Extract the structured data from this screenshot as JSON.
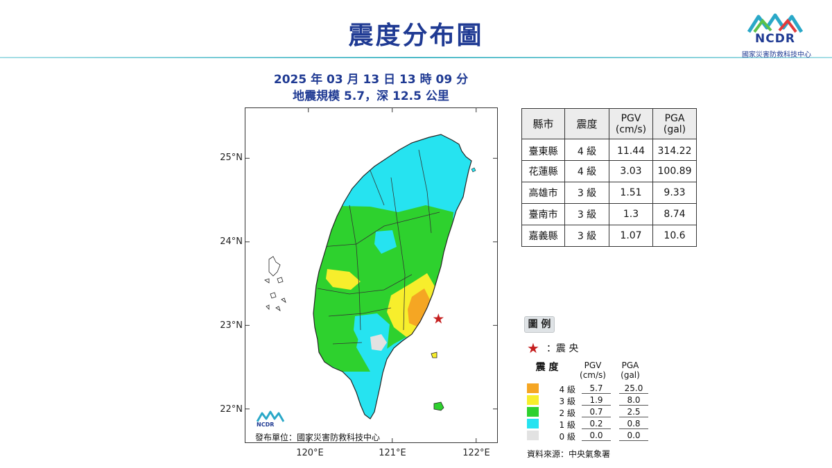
{
  "title": "震度分布圖",
  "org": {
    "logo_text": "NCDR",
    "name": "國家災害防救科技中心"
  },
  "event": {
    "datetime": "2025 年 03 月 13 日 13 時 09 分",
    "magnitude_depth": "地震規模 5.7，深 12.5 公里"
  },
  "map": {
    "lat_labels": [
      "25°N",
      "24°N",
      "23°N",
      "22°N"
    ],
    "lon_labels": [
      "120°E",
      "121°E",
      "122°E"
    ],
    "publisher": "發布單位：國家災害防救科技中心",
    "publisher_logo_text": "NCDR",
    "epicenter": {
      "lon": 121.55,
      "lat": 23.07
    }
  },
  "table": {
    "headers": {
      "county": "縣市",
      "level": "震度",
      "pgv": "PGV",
      "pgv_unit": "(cm/s)",
      "pga": "PGA",
      "pga_unit": "(gal)"
    },
    "rows": [
      {
        "county": "臺東縣",
        "level": "4 級",
        "pgv": "11.44",
        "pga": "314.22"
      },
      {
        "county": "花蓮縣",
        "level": "4 級",
        "pgv": "3.03",
        "pga": "100.89"
      },
      {
        "county": "高雄市",
        "level": "3 級",
        "pgv": "1.51",
        "pga": "9.33"
      },
      {
        "county": "臺南市",
        "level": "3 級",
        "pgv": "1.3",
        "pga": "8.74"
      },
      {
        "county": "嘉義縣",
        "level": "3 級",
        "pgv": "1.07",
        "pga": "10.6"
      }
    ]
  },
  "legend": {
    "title": "圖 例",
    "epicenter_label": "：震 央",
    "col_level": "震 度",
    "col_pgv": "PGV",
    "col_pgv_unit": "(cm/s)",
    "col_pga": "PGA",
    "col_pga_unit": "(gal)",
    "items": [
      {
        "level": "4 級",
        "pgv": "5.7",
        "pga": "25.0",
        "color": "#f5a623"
      },
      {
        "level": "3 級",
        "pgv": "1.9",
        "pga": "8.0",
        "color": "#f7ee2c"
      },
      {
        "level": "2 級",
        "pgv": "0.7",
        "pga": "2.5",
        "color": "#2ed12e"
      },
      {
        "level": "1 級",
        "pgv": "0.2",
        "pga": "0.8",
        "color": "#26e3f0"
      },
      {
        "level": "0 級",
        "pgv": "0.0",
        "pga": "0.0",
        "color": "#e2e2e2"
      }
    ]
  },
  "source": "資料來源：中央氣象署",
  "colors": {
    "title": "#1f3a93",
    "level4": "#f5a623",
    "level3": "#f7ee2c",
    "level2": "#2ed12e",
    "level1": "#26e3f0",
    "level0": "#e2e2e2",
    "epicenter": "#c51f1f"
  }
}
